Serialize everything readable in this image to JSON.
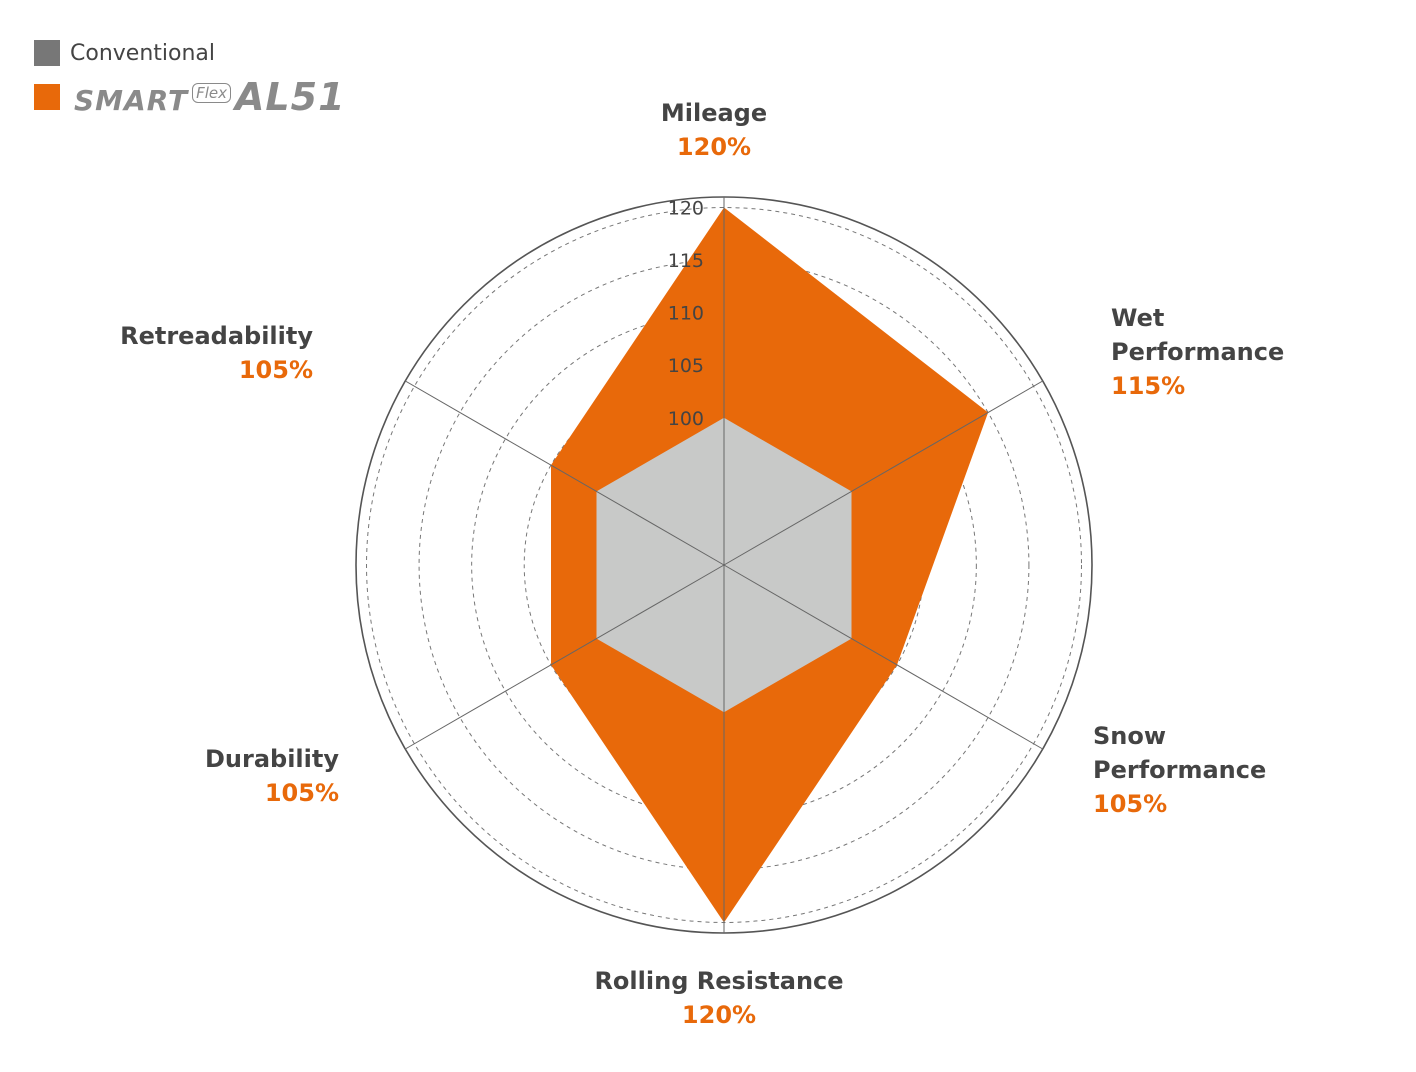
{
  "colors": {
    "conventional": "#c8c9c8",
    "conventional_swatch": "#777777",
    "product": "#e8690a",
    "text": "#444444",
    "value_text": "#e8690a",
    "grid": "#555555"
  },
  "legend": {
    "conventional_label": "Conventional",
    "brand_smart": "SMART",
    "brand_flex": "Flex",
    "brand_model": "AL51"
  },
  "chart_data": {
    "type": "radar",
    "axes": [
      "Mileage",
      "Wet Performance",
      "Snow Performance",
      "Rolling Resistance",
      "Durability",
      "Retreadability"
    ],
    "axis_value_labels": [
      "120%",
      "115%",
      "105%",
      "120%",
      "105%",
      "105%"
    ],
    "rticks": [
      100,
      105,
      110,
      115,
      120
    ],
    "rlim": [
      86,
      121
    ],
    "series": [
      {
        "name": "Conventional",
        "values": [
          100,
          100,
          100,
          100,
          100,
          100
        ]
      },
      {
        "name": "SMARTFlex AL51",
        "values": [
          120,
          115,
          105,
          120,
          105,
          105
        ]
      }
    ]
  }
}
